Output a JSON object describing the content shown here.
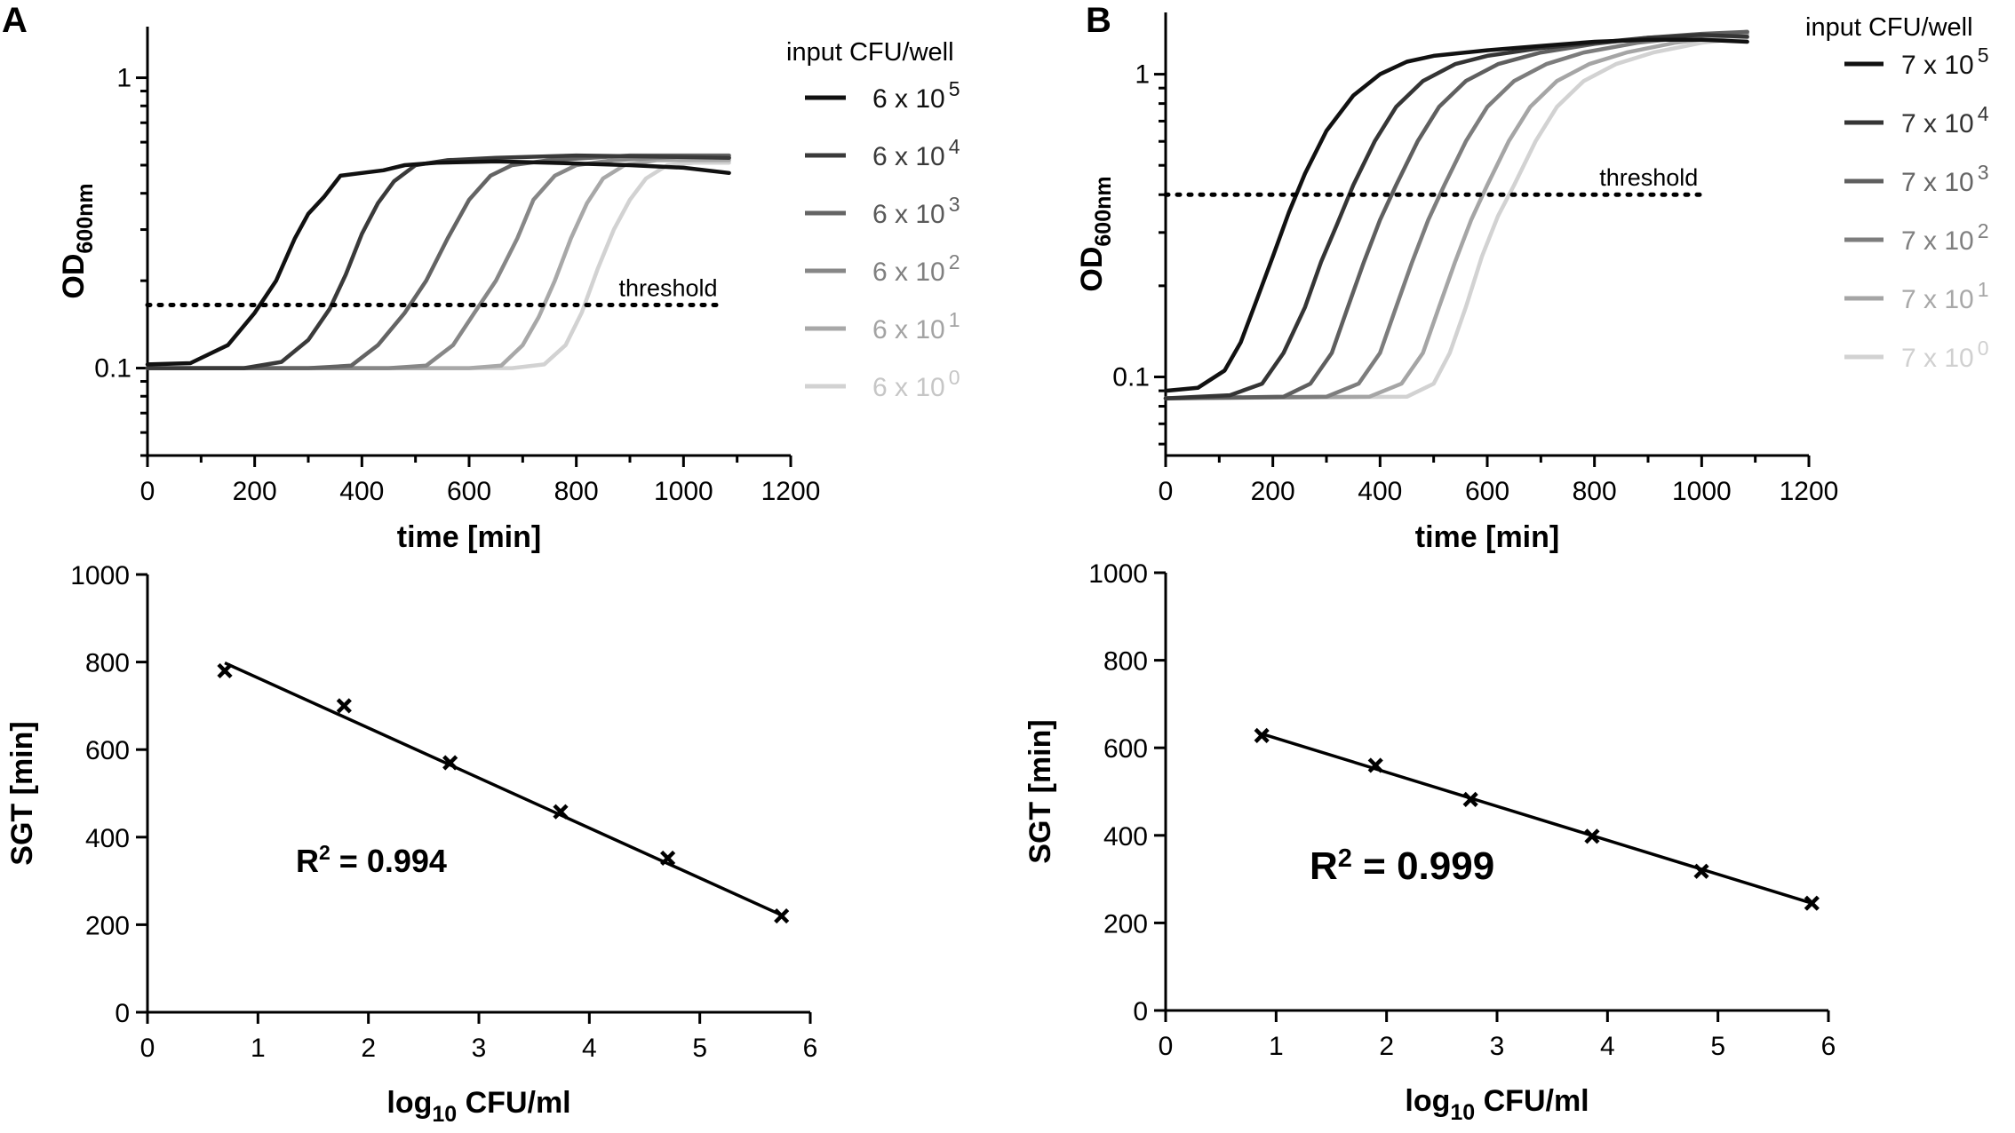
{
  "figure": {
    "panels": [
      {
        "id": "A",
        "label": "A"
      },
      {
        "id": "B",
        "label": "B"
      }
    ]
  },
  "chart_data": [
    {
      "id": "A-growth",
      "panel": "A",
      "type": "line",
      "title": "",
      "xlabel": "time [min]",
      "ylabel": "OD",
      "ylabel_subscript": "600nm",
      "y_scale": "log",
      "xlim": [
        0,
        1200
      ],
      "ylim": [
        0.05,
        1.5
      ],
      "x_ticks": [
        0,
        200,
        400,
        600,
        800,
        1000,
        1200
      ],
      "y_ticks": [
        {
          "value": 0.1,
          "label": "0.1"
        },
        {
          "value": 1,
          "label": "1"
        }
      ],
      "threshold": {
        "value": 0.165,
        "label": "threshold",
        "x_range": [
          0,
          1070
        ]
      },
      "legend": {
        "title": "input CFU/well",
        "position": "right"
      },
      "series": [
        {
          "name": "6 x 10^5",
          "base": "6 x 10",
          "exp": "5",
          "color": "#111111",
          "label_color": "#111111",
          "points": [
            [
              0,
              0.103
            ],
            [
              80,
              0.104
            ],
            [
              150,
              0.12
            ],
            [
              200,
              0.155
            ],
            [
              240,
              0.2
            ],
            [
              275,
              0.28
            ],
            [
              300,
              0.34
            ],
            [
              330,
              0.39
            ],
            [
              360,
              0.46
            ],
            [
              400,
              0.47
            ],
            [
              440,
              0.48
            ],
            [
              480,
              0.5
            ],
            [
              540,
              0.51
            ],
            [
              650,
              0.515
            ],
            [
              750,
              0.51
            ],
            [
              900,
              0.5
            ],
            [
              1000,
              0.49
            ],
            [
              1085,
              0.47
            ]
          ]
        },
        {
          "name": "6 x 10^4",
          "base": "6 x 10",
          "exp": "4",
          "color": "#3a3a3a",
          "label_color": "#3a3a3a",
          "points": [
            [
              0,
              0.1
            ],
            [
              180,
              0.1
            ],
            [
              250,
              0.105
            ],
            [
              300,
              0.125
            ],
            [
              340,
              0.16
            ],
            [
              370,
              0.21
            ],
            [
              400,
              0.29
            ],
            [
              430,
              0.37
            ],
            [
              460,
              0.44
            ],
            [
              500,
              0.5
            ],
            [
              560,
              0.52
            ],
            [
              650,
              0.53
            ],
            [
              800,
              0.54
            ],
            [
              950,
              0.535
            ],
            [
              1085,
              0.53
            ]
          ]
        },
        {
          "name": "6 x 10^3",
          "base": "6 x 10",
          "exp": "3",
          "color": "#646464",
          "label_color": "#5a5a5a",
          "points": [
            [
              0,
              0.1
            ],
            [
              300,
              0.1
            ],
            [
              380,
              0.102
            ],
            [
              430,
              0.12
            ],
            [
              480,
              0.155
            ],
            [
              520,
              0.2
            ],
            [
              560,
              0.28
            ],
            [
              600,
              0.38
            ],
            [
              640,
              0.46
            ],
            [
              680,
              0.5
            ],
            [
              750,
              0.52
            ],
            [
              900,
              0.54
            ],
            [
              1085,
              0.54
            ]
          ]
        },
        {
          "name": "6 x 10^2",
          "base": "6 x 10",
          "exp": "2",
          "color": "#878787",
          "label_color": "#808080",
          "points": [
            [
              0,
              0.1
            ],
            [
              450,
              0.1
            ],
            [
              520,
              0.102
            ],
            [
              570,
              0.12
            ],
            [
              610,
              0.155
            ],
            [
              650,
              0.2
            ],
            [
              690,
              0.28
            ],
            [
              720,
              0.38
            ],
            [
              760,
              0.46
            ],
            [
              800,
              0.5
            ],
            [
              870,
              0.52
            ],
            [
              1000,
              0.535
            ],
            [
              1085,
              0.53
            ]
          ]
        },
        {
          "name": "6 x 10^1",
          "base": "6 x 10",
          "exp": "1",
          "color": "#a8a8a8",
          "label_color": "#a3a3a3",
          "points": [
            [
              0,
              0.1
            ],
            [
              600,
              0.1
            ],
            [
              660,
              0.102
            ],
            [
              700,
              0.12
            ],
            [
              730,
              0.15
            ],
            [
              760,
              0.2
            ],
            [
              790,
              0.28
            ],
            [
              820,
              0.37
            ],
            [
              850,
              0.45
            ],
            [
              890,
              0.5
            ],
            [
              950,
              0.52
            ],
            [
              1085,
              0.52
            ]
          ]
        },
        {
          "name": "6 x 10^0",
          "base": "6 x 10",
          "exp": "0",
          "color": "#d2d2d2",
          "label_color": "#c6c6c6",
          "points": [
            [
              0,
              0.1
            ],
            [
              680,
              0.1
            ],
            [
              740,
              0.103
            ],
            [
              780,
              0.12
            ],
            [
              810,
              0.155
            ],
            [
              840,
              0.22
            ],
            [
              870,
              0.3
            ],
            [
              900,
              0.38
            ],
            [
              930,
              0.45
            ],
            [
              970,
              0.5
            ],
            [
              1020,
              0.51
            ],
            [
              1085,
              0.51
            ]
          ]
        }
      ]
    },
    {
      "id": "B-growth",
      "panel": "B",
      "type": "line",
      "title": "",
      "xlabel": "time [min]",
      "ylabel": "OD",
      "ylabel_subscript": "600nm",
      "y_scale": "log",
      "xlim": [
        0,
        1200
      ],
      "ylim": [
        0.055,
        1.6
      ],
      "x_ticks": [
        0,
        200,
        400,
        600,
        800,
        1000,
        1200
      ],
      "y_ticks": [
        {
          "value": 0.1,
          "label": "0.1"
        },
        {
          "value": 1,
          "label": "1"
        }
      ],
      "threshold": {
        "value": 0.4,
        "label": "threshold",
        "x_range": [
          0,
          1000
        ]
      },
      "legend": {
        "title": "input CFU/well",
        "position": "right"
      },
      "series": [
        {
          "name": "7 x 10^5",
          "base": "7 x 10",
          "exp": "5",
          "color": "#111111",
          "label_color": "#111111",
          "points": [
            [
              0,
              0.09
            ],
            [
              60,
              0.092
            ],
            [
              110,
              0.105
            ],
            [
              140,
              0.13
            ],
            [
              170,
              0.18
            ],
            [
              200,
              0.25
            ],
            [
              230,
              0.35
            ],
            [
              260,
              0.47
            ],
            [
              300,
              0.65
            ],
            [
              350,
              0.85
            ],
            [
              400,
              1.0
            ],
            [
              450,
              1.1
            ],
            [
              500,
              1.15
            ],
            [
              600,
              1.2
            ],
            [
              700,
              1.24
            ],
            [
              800,
              1.28
            ],
            [
              900,
              1.3
            ],
            [
              1000,
              1.3
            ],
            [
              1085,
              1.28
            ]
          ]
        },
        {
          "name": "7 x 10^4",
          "base": "7 x 10",
          "exp": "4",
          "color": "#353535",
          "label_color": "#333333",
          "points": [
            [
              0,
              0.085
            ],
            [
              120,
              0.087
            ],
            [
              180,
              0.095
            ],
            [
              220,
              0.12
            ],
            [
              260,
              0.17
            ],
            [
              290,
              0.24
            ],
            [
              320,
              0.32
            ],
            [
              350,
              0.43
            ],
            [
              390,
              0.6
            ],
            [
              430,
              0.78
            ],
            [
              480,
              0.95
            ],
            [
              540,
              1.08
            ],
            [
              600,
              1.15
            ],
            [
              700,
              1.22
            ],
            [
              800,
              1.27
            ],
            [
              900,
              1.32
            ],
            [
              1000,
              1.35
            ],
            [
              1085,
              1.33
            ]
          ]
        },
        {
          "name": "7 x 10^3",
          "base": "7 x 10",
          "exp": "3",
          "color": "#5f5f5f",
          "label_color": "#666666",
          "points": [
            [
              0,
              0.085
            ],
            [
              220,
              0.086
            ],
            [
              270,
              0.095
            ],
            [
              310,
              0.12
            ],
            [
              340,
              0.17
            ],
            [
              370,
              0.24
            ],
            [
              400,
              0.33
            ],
            [
              430,
              0.43
            ],
            [
              470,
              0.6
            ],
            [
              510,
              0.78
            ],
            [
              560,
              0.95
            ],
            [
              620,
              1.08
            ],
            [
              700,
              1.18
            ],
            [
              800,
              1.26
            ],
            [
              900,
              1.32
            ],
            [
              1000,
              1.36
            ],
            [
              1085,
              1.38
            ]
          ]
        },
        {
          "name": "7 x 10^2",
          "base": "7 x 10",
          "exp": "2",
          "color": "#7d7d7d",
          "label_color": "#808080",
          "points": [
            [
              0,
              0.085
            ],
            [
              300,
              0.086
            ],
            [
              360,
              0.095
            ],
            [
              400,
              0.12
            ],
            [
              430,
              0.17
            ],
            [
              460,
              0.24
            ],
            [
              490,
              0.33
            ],
            [
              520,
              0.43
            ],
            [
              560,
              0.6
            ],
            [
              600,
              0.78
            ],
            [
              650,
              0.95
            ],
            [
              710,
              1.08
            ],
            [
              780,
              1.18
            ],
            [
              880,
              1.27
            ],
            [
              1000,
              1.34
            ],
            [
              1085,
              1.38
            ]
          ]
        },
        {
          "name": "7 x 10^1",
          "base": "7 x 10",
          "exp": "1",
          "color": "#a5a5a5",
          "label_color": "#a8a8a8",
          "points": [
            [
              0,
              0.085
            ],
            [
              380,
              0.086
            ],
            [
              440,
              0.095
            ],
            [
              480,
              0.12
            ],
            [
              510,
              0.17
            ],
            [
              540,
              0.24
            ],
            [
              570,
              0.33
            ],
            [
              600,
              0.43
            ],
            [
              640,
              0.6
            ],
            [
              680,
              0.78
            ],
            [
              730,
              0.95
            ],
            [
              790,
              1.08
            ],
            [
              860,
              1.18
            ],
            [
              950,
              1.27
            ],
            [
              1040,
              1.33
            ],
            [
              1085,
              1.36
            ]
          ]
        },
        {
          "name": "7 x 10^0",
          "base": "7 x 10",
          "exp": "0",
          "color": "#d2d2d2",
          "label_color": "#d0d0d0",
          "points": [
            [
              0,
              0.085
            ],
            [
              450,
              0.086
            ],
            [
              500,
              0.095
            ],
            [
              530,
              0.12
            ],
            [
              560,
              0.17
            ],
            [
              590,
              0.25
            ],
            [
              620,
              0.34
            ],
            [
              650,
              0.43
            ],
            [
              690,
              0.6
            ],
            [
              730,
              0.78
            ],
            [
              780,
              0.95
            ],
            [
              840,
              1.08
            ],
            [
              910,
              1.18
            ],
            [
              1000,
              1.27
            ],
            [
              1085,
              1.32
            ]
          ]
        }
      ]
    },
    {
      "id": "A-regression",
      "panel": "A",
      "type": "scatter",
      "title": "",
      "xlabel": "log",
      "xlabel_subscript": "10",
      "xlabel_suffix": " CFU/ml",
      "ylabel": "SGT [min]",
      "xlim": [
        0,
        6
      ],
      "ylim": [
        0,
        1000
      ],
      "x_ticks": [
        0,
        1,
        2,
        3,
        4,
        5,
        6
      ],
      "y_ticks": [
        0,
        200,
        400,
        600,
        800,
        1000
      ],
      "x": [
        0.7,
        1.78,
        2.74,
        3.74,
        4.71,
        5.74
      ],
      "y": [
        780,
        700,
        570,
        458,
        352,
        220
      ],
      "fit_line": {
        "x": [
          0.7,
          5.74
        ],
        "y": [
          798,
          222
        ]
      },
      "annotation": {
        "prefix": "R",
        "sup": "2",
        "text": " = 0.994"
      }
    },
    {
      "id": "B-regression",
      "panel": "B",
      "type": "scatter",
      "title": "",
      "xlabel": "log",
      "xlabel_subscript": "10",
      "xlabel_suffix": " CFU/ml",
      "ylabel": "SGT [min]",
      "xlim": [
        0,
        6
      ],
      "ylim": [
        0,
        1000
      ],
      "x_ticks": [
        0,
        1,
        2,
        3,
        4,
        5,
        6
      ],
      "y_ticks": [
        0,
        200,
        400,
        600,
        800,
        1000
      ],
      "x": [
        0.87,
        1.9,
        2.76,
        3.86,
        4.85,
        5.85
      ],
      "y": [
        628,
        560,
        482,
        398,
        318,
        245
      ],
      "fit_line": {
        "x": [
          0.87,
          5.85
        ],
        "y": [
          632,
          245
        ]
      },
      "annotation": {
        "prefix": "R",
        "sup": "2",
        "text": " = 0.999"
      }
    }
  ]
}
